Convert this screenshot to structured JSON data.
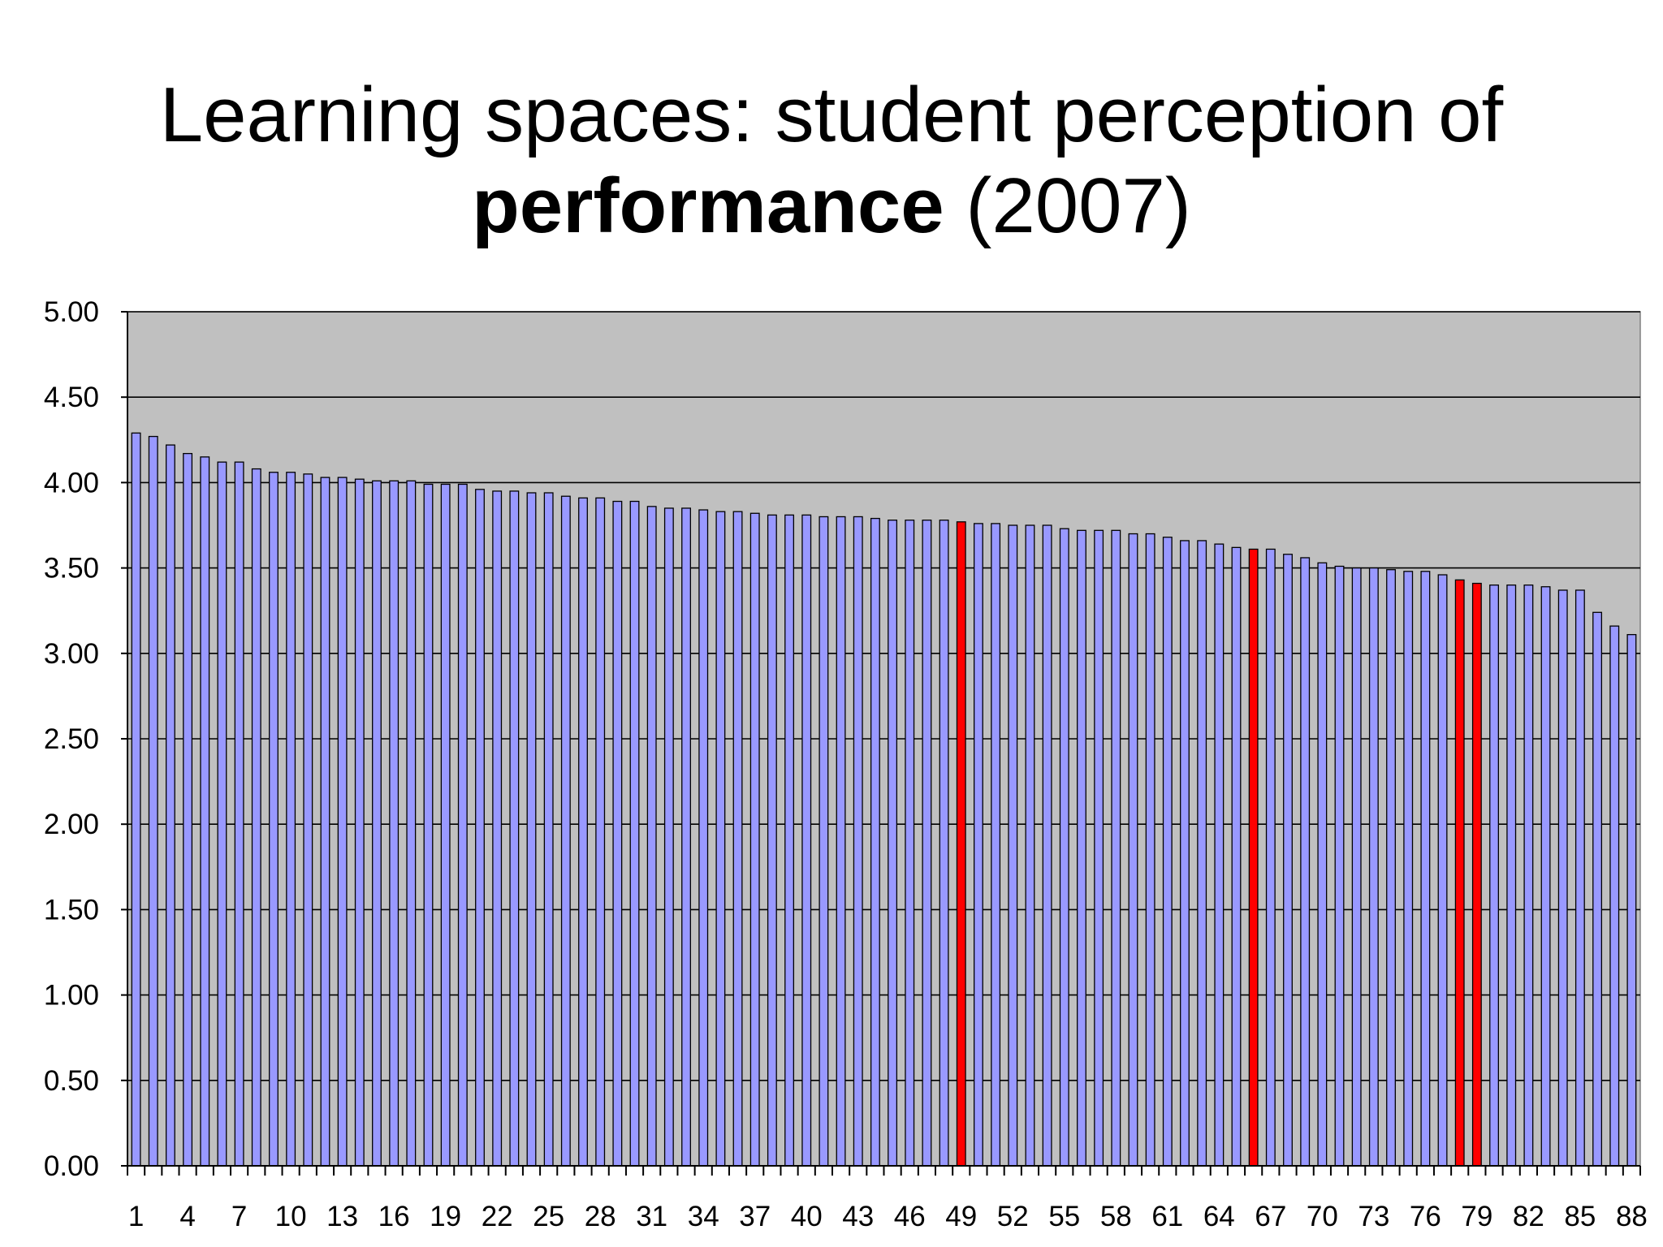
{
  "chart_data": {
    "type": "bar",
    "title_part1": "Learning spaces: student perception of",
    "title_bold": "performance",
    "title_rest": "(2007)",
    "xlabel": "",
    "ylabel": "",
    "ylim": [
      0,
      5
    ],
    "y_ticks": [
      "0.00",
      "0.50",
      "1.00",
      "1.50",
      "2.00",
      "2.50",
      "3.00",
      "3.50",
      "4.00",
      "4.50",
      "5.00"
    ],
    "y_grid": [
      0.5,
      1.0,
      1.5,
      2.0,
      2.5,
      3.0,
      3.5,
      4.0,
      4.5,
      5.0
    ],
    "x_tick_labels": [
      "1",
      "4",
      "7",
      "10",
      "13",
      "16",
      "19",
      "22",
      "25",
      "28",
      "31",
      "34",
      "37",
      "40",
      "43",
      "46",
      "49",
      "52",
      "55",
      "58",
      "61",
      "64",
      "67",
      "70",
      "73",
      "76",
      "79",
      "82",
      "85",
      "88"
    ],
    "grid": true,
    "legend": "none",
    "colors": {
      "default": "#9999ff",
      "highlight": "#ff0000",
      "plot_background": "#c0c0c0",
      "edge": "#000000"
    },
    "highlighted_categories": [
      49,
      66,
      78,
      79
    ],
    "categories": [
      1,
      2,
      3,
      4,
      5,
      6,
      7,
      8,
      9,
      10,
      11,
      12,
      13,
      14,
      15,
      16,
      17,
      18,
      19,
      20,
      21,
      22,
      23,
      24,
      25,
      26,
      27,
      28,
      29,
      30,
      31,
      32,
      33,
      34,
      35,
      36,
      37,
      38,
      39,
      40,
      41,
      42,
      43,
      44,
      45,
      46,
      47,
      48,
      49,
      50,
      51,
      52,
      53,
      54,
      55,
      56,
      57,
      58,
      59,
      60,
      61,
      62,
      63,
      64,
      65,
      66,
      67,
      68,
      69,
      70,
      71,
      72,
      73,
      74,
      75,
      76,
      77,
      78,
      79,
      80,
      81,
      82,
      83,
      84,
      85,
      86,
      87,
      88
    ],
    "values": [
      4.29,
      4.27,
      4.22,
      4.17,
      4.15,
      4.12,
      4.12,
      4.08,
      4.06,
      4.06,
      4.05,
      4.03,
      4.03,
      4.02,
      4.01,
      4.01,
      4.01,
      3.99,
      3.99,
      3.99,
      3.96,
      3.95,
      3.95,
      3.94,
      3.94,
      3.92,
      3.91,
      3.91,
      3.89,
      3.89,
      3.86,
      3.85,
      3.85,
      3.84,
      3.83,
      3.83,
      3.82,
      3.81,
      3.81,
      3.81,
      3.8,
      3.8,
      3.8,
      3.79,
      3.78,
      3.78,
      3.78,
      3.78,
      3.77,
      3.76,
      3.76,
      3.75,
      3.75,
      3.75,
      3.73,
      3.72,
      3.72,
      3.72,
      3.7,
      3.7,
      3.68,
      3.66,
      3.66,
      3.64,
      3.62,
      3.61,
      3.61,
      3.58,
      3.56,
      3.53,
      3.51,
      3.5,
      3.5,
      3.49,
      3.48,
      3.48,
      3.46,
      3.43,
      3.41,
      3.4,
      3.4,
      3.4,
      3.39,
      3.37,
      3.37,
      3.24,
      3.16,
      3.11
    ]
  }
}
